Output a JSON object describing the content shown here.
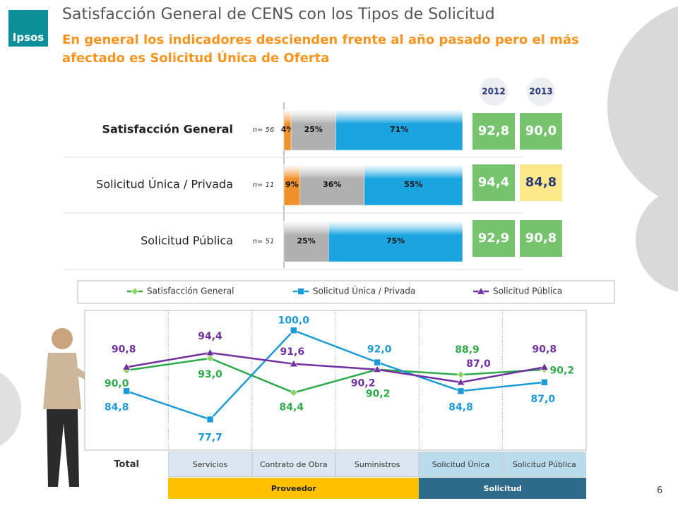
{
  "header": {
    "logo": "Ipsos",
    "title": "Satisfacción General de CENS con los Tipos de Solicitud",
    "subtitle": "En general los indicadores descienden frente al año pasado pero el más afectado es Solicitud Única de Oferta"
  },
  "kpi": {
    "years": [
      "2012",
      "2013"
    ],
    "rows": [
      [
        "92,8",
        "90,0"
      ],
      [
        "94,4",
        "84,8"
      ],
      [
        "92,9",
        "90,8"
      ]
    ],
    "cell_colors": [
      [
        "#77c46f",
        "#77c46f"
      ],
      [
        "#77c46f",
        "#fde98a"
      ],
      [
        "#77c46f",
        "#77c46f"
      ]
    ]
  },
  "page_number": "6",
  "chart_data": [
    {
      "type": "barh",
      "stacked": true,
      "categories": [
        "Satisfacción General",
        "Solicitud Única / Privada",
        "Solicitud Pública"
      ],
      "sample_sizes": [
        "n= 56",
        "n= 11",
        "n= 51"
      ],
      "xlim": [
        0,
        100
      ],
      "series": [
        {
          "color": "#f0922b",
          "values": [
            4,
            9,
            null
          ],
          "value_labels": [
            "4%",
            "9%",
            null
          ]
        },
        {
          "color": "#b0b0b0",
          "values": [
            25,
            36,
            25
          ],
          "value_labels": [
            "25%",
            "36%",
            "25%"
          ]
        },
        {
          "color": "#1aa5e0",
          "values": [
            71,
            55,
            75
          ],
          "value_labels": [
            "71%",
            "55%",
            "75%"
          ]
        }
      ]
    },
    {
      "type": "line",
      "categories": [
        "Total",
        "Servicios",
        "Contrato de Obra",
        "Suministros",
        "Solicitud Única",
        "Solicitud Pública"
      ],
      "groups": [
        "Proveedor",
        "Solicitud"
      ],
      "ylim": [
        70,
        105
      ],
      "series": [
        {
          "name": "Satisfacción General",
          "color": "#2eaa4a",
          "marker": "diamond",
          "values": [
            90.0,
            93.0,
            84.4,
            90.2,
            88.9,
            90.2
          ],
          "value_labels": [
            "90,0",
            "93,0",
            "84,4",
            "90,2",
            "88,9",
            "90,2"
          ]
        },
        {
          "name": "Solicitud Única / Privada",
          "color": "#1a9ad6",
          "marker": "square",
          "values": [
            84.8,
            77.7,
            100.0,
            92.0,
            84.8,
            87.0
          ],
          "value_labels": [
            "84,8",
            "77,7",
            "100,0",
            "92,0",
            "84,8",
            "87,0"
          ]
        },
        {
          "name": "Solicitud Pública",
          "color": "#7030a0",
          "marker": "triangle",
          "values": [
            90.8,
            94.4,
            91.6,
            90.2,
            87.0,
            90.8
          ],
          "value_labels": [
            "90,8",
            "94,4",
            "91,6",
            "90,2",
            "87,0",
            "90,8"
          ]
        }
      ]
    }
  ]
}
